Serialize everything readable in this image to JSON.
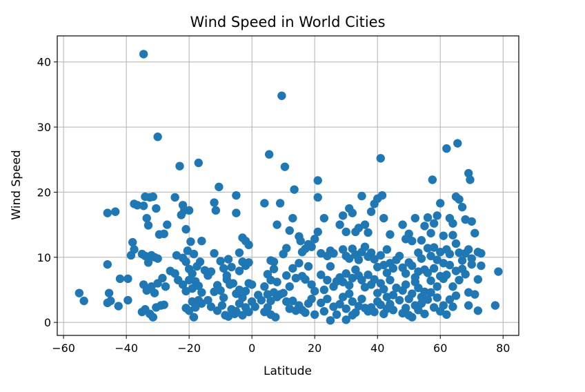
{
  "chart_data": {
    "type": "scatter",
    "title": "Wind Speed in World Cities",
    "xlabel": "Latitude",
    "ylabel": "Wind Speed",
    "xlim": [
      -62,
      85
    ],
    "ylim": [
      -2,
      44
    ],
    "xticks": [
      -60,
      -40,
      -20,
      0,
      20,
      40,
      60,
      80
    ],
    "yticks": [
      0,
      10,
      20,
      30,
      40
    ],
    "grid": true,
    "marker_color": "#1f77b4",
    "points": [
      [
        -55,
        4.5
      ],
      [
        -53.5,
        3.3
      ],
      [
        -46,
        16.8
      ],
      [
        -43.5,
        17
      ],
      [
        -46,
        8.9
      ],
      [
        -46,
        3
      ],
      [
        -45,
        3.3
      ],
      [
        -45.5,
        4.5
      ],
      [
        -42,
        6.7
      ],
      [
        -42.5,
        2.5
      ],
      [
        -39.5,
        6.7
      ],
      [
        -39.5,
        3.4
      ],
      [
        -38.5,
        10.3
      ],
      [
        -38,
        12.3
      ],
      [
        -37.5,
        11.2
      ],
      [
        -37.5,
        18.2
      ],
      [
        -36.5,
        18
      ],
      [
        -34.5,
        41.2
      ],
      [
        -34.5,
        17.9
      ],
      [
        -34,
        19.3
      ],
      [
        -33.5,
        16
      ],
      [
        -32.5,
        19.2
      ],
      [
        -33,
        14.9
      ],
      [
        -31.5,
        19.3
      ],
      [
        -30.5,
        17.5
      ],
      [
        -30,
        28.5
      ],
      [
        -29.5,
        13.5
      ],
      [
        -28,
        13.6
      ],
      [
        -27,
        15
      ],
      [
        -35,
        10.5
      ],
      [
        -34,
        10.2
      ],
      [
        -33,
        9.2
      ],
      [
        -32,
        10.3
      ],
      [
        -31,
        10
      ],
      [
        -30,
        9.8
      ],
      [
        -34.5,
        5.8
      ],
      [
        -33.5,
        4.9
      ],
      [
        -32,
        5.5
      ],
      [
        -31,
        4.5
      ],
      [
        -30,
        6
      ],
      [
        -28.5,
        6.8
      ],
      [
        -27.5,
        5.5
      ],
      [
        -26,
        7.9
      ],
      [
        -35,
        1.6
      ],
      [
        -34,
        2
      ],
      [
        -32.5,
        1.3
      ],
      [
        -31.5,
        0.8
      ],
      [
        -30.5,
        2.3
      ],
      [
        -29,
        2.6
      ],
      [
        -28,
        2.7
      ],
      [
        -24.5,
        7.5
      ],
      [
        -23.5,
        6.5
      ],
      [
        -24.5,
        19.2
      ],
      [
        -23,
        24
      ],
      [
        -22,
        18
      ],
      [
        -21.5,
        17.2
      ],
      [
        -20,
        17.2
      ],
      [
        -22.5,
        16.5
      ],
      [
        -21,
        14.3
      ],
      [
        -20.5,
        11
      ],
      [
        -19.5,
        12.4
      ],
      [
        -18.5,
        10.5
      ],
      [
        -17,
        24.5
      ],
      [
        -16,
        12.5
      ],
      [
        -24,
        10.3
      ],
      [
        -22,
        9.9
      ],
      [
        -21,
        9.3
      ],
      [
        -20,
        8.2
      ],
      [
        -19,
        7.5
      ],
      [
        -17.5,
        8.6
      ],
      [
        -16.5,
        9.3
      ],
      [
        -22,
        5.8
      ],
      [
        -21,
        4.8
      ],
      [
        -20,
        6.5
      ],
      [
        -19,
        5.2
      ],
      [
        -18,
        6.3
      ],
      [
        -17,
        5.6
      ],
      [
        -16,
        4.6
      ],
      [
        -21,
        2.2
      ],
      [
        -20,
        1.8
      ],
      [
        -19,
        3.2
      ],
      [
        -18,
        2.3
      ],
      [
        -17,
        3.4
      ],
      [
        -16,
        2.9
      ],
      [
        -18.5,
        0.8
      ],
      [
        -15,
        8
      ],
      [
        -14,
        7.2
      ],
      [
        -13,
        7.8
      ],
      [
        -12,
        18.4
      ],
      [
        -11.5,
        17.2
      ],
      [
        -10.5,
        20.8
      ],
      [
        -12,
        10.6
      ],
      [
        -10,
        9.4
      ],
      [
        -9,
        8.3
      ],
      [
        -8,
        7.2
      ],
      [
        -7.5,
        9.7
      ],
      [
        -6.5,
        8.5
      ],
      [
        -14,
        3.4
      ],
      [
        -12,
        4.7
      ],
      [
        -11,
        5.7
      ],
      [
        -10,
        4.9
      ],
      [
        -9,
        3.8
      ],
      [
        -8,
        6.6
      ],
      [
        -7,
        5.8
      ],
      [
        -6,
        6
      ],
      [
        -13,
        2.4
      ],
      [
        -11,
        1.8
      ],
      [
        -9.5,
        2.6
      ],
      [
        -8.5,
        1.1
      ],
      [
        -7.5,
        0.9
      ],
      [
        -6.5,
        2
      ],
      [
        -5.5,
        1.3
      ],
      [
        -5,
        19.5
      ],
      [
        -5,
        16.8
      ],
      [
        -4,
        10.7
      ],
      [
        -3,
        13
      ],
      [
        -2,
        12.5
      ],
      [
        -1,
        11.9
      ],
      [
        -4,
        7.9
      ],
      [
        -3,
        9.3
      ],
      [
        -2,
        8.7
      ],
      [
        -1,
        9.2
      ],
      [
        -5,
        4.4
      ],
      [
        -4,
        5
      ],
      [
        -3,
        3.8
      ],
      [
        -2,
        4.8
      ],
      [
        -1,
        6
      ],
      [
        0,
        5.8
      ],
      [
        -5,
        1.7
      ],
      [
        -4,
        2.9
      ],
      [
        -3,
        1.1
      ],
      [
        -2,
        2.3
      ],
      [
        -1,
        1.6
      ],
      [
        0,
        3.2
      ],
      [
        1,
        2.4
      ],
      [
        2,
        4.2
      ],
      [
        3,
        3.4
      ],
      [
        4,
        18.3
      ],
      [
        5.5,
        25.8
      ],
      [
        6,
        9.5
      ],
      [
        7,
        9.3
      ],
      [
        8,
        15
      ],
      [
        9,
        18.3
      ],
      [
        9.5,
        34.8
      ],
      [
        10.5,
        23.9
      ],
      [
        5,
        7.4
      ],
      [
        6,
        6.5
      ],
      [
        7,
        8.2
      ],
      [
        8,
        6.2
      ],
      [
        4,
        5.5
      ],
      [
        5,
        4.3
      ],
      [
        6,
        3.3
      ],
      [
        7,
        4.6
      ],
      [
        8,
        3.9
      ],
      [
        9,
        4.3
      ],
      [
        4,
        1.6
      ],
      [
        5,
        2.3
      ],
      [
        6,
        1.2
      ],
      [
        7.5,
        0.8
      ],
      [
        10,
        10.5
      ],
      [
        11,
        11.4
      ],
      [
        12,
        14.1
      ],
      [
        13,
        16
      ],
      [
        13.5,
        20.4
      ],
      [
        15,
        13.2
      ],
      [
        15.5,
        12.5
      ],
      [
        16,
        10.8
      ],
      [
        17,
        11.3
      ],
      [
        18,
        12
      ],
      [
        19,
        11.6
      ],
      [
        20,
        12.8
      ],
      [
        21,
        13.9
      ],
      [
        21,
        19.2
      ],
      [
        21,
        21.8
      ],
      [
        11,
        7.2
      ],
      [
        12,
        5.5
      ],
      [
        13,
        8.3
      ],
      [
        14,
        6.8
      ],
      [
        15,
        9.1
      ],
      [
        16,
        7.1
      ],
      [
        17,
        6.6
      ],
      [
        18,
        8.6
      ],
      [
        19,
        5.8
      ],
      [
        20,
        4.8
      ],
      [
        10,
        4.5
      ],
      [
        11,
        3.2
      ],
      [
        12,
        2.1
      ],
      [
        13,
        3.3
      ],
      [
        14,
        1.8
      ],
      [
        15,
        2.6
      ],
      [
        16,
        1.9
      ],
      [
        17,
        1.5
      ],
      [
        18,
        2.9
      ],
      [
        19,
        3.6
      ],
      [
        20,
        1.2
      ],
      [
        22,
        10.6
      ],
      [
        23,
        16
      ],
      [
        24,
        10.2
      ],
      [
        25,
        11
      ],
      [
        26,
        10.6
      ],
      [
        22,
        7.3
      ],
      [
        23,
        5
      ],
      [
        24,
        6.5
      ],
      [
        25,
        8.6
      ],
      [
        26,
        5.5
      ],
      [
        27,
        6.3
      ],
      [
        22,
        3
      ],
      [
        23,
        1.7
      ],
      [
        24,
        3.6
      ],
      [
        25,
        0.3
      ],
      [
        26,
        2.4
      ],
      [
        27,
        1.2
      ],
      [
        28,
        15
      ],
      [
        29,
        16.4
      ],
      [
        30,
        13.9
      ],
      [
        31,
        17.5
      ],
      [
        32,
        16.8
      ],
      [
        33,
        13.9
      ],
      [
        34,
        14.5
      ],
      [
        35,
        19.4
      ],
      [
        36,
        15
      ],
      [
        37,
        13.8
      ],
      [
        38,
        17
      ],
      [
        29,
        11.2
      ],
      [
        30,
        10.2
      ],
      [
        31,
        9.8
      ],
      [
        32,
        11.3
      ],
      [
        33,
        10.4
      ],
      [
        34,
        9.6
      ],
      [
        35,
        10.8
      ],
      [
        36,
        11.6
      ],
      [
        37,
        10.1
      ],
      [
        28,
        6.9
      ],
      [
        29,
        6.2
      ],
      [
        30,
        7.5
      ],
      [
        31,
        5.7
      ],
      [
        32,
        6.8
      ],
      [
        33,
        8.1
      ],
      [
        34,
        7.2
      ],
      [
        35,
        6.5
      ],
      [
        36,
        5.4
      ],
      [
        37,
        7.3
      ],
      [
        28,
        2.8
      ],
      [
        29,
        3.9
      ],
      [
        30,
        2.1
      ],
      [
        31,
        4.4
      ],
      [
        32,
        3.2
      ],
      [
        33,
        1.5
      ],
      [
        34,
        2.5
      ],
      [
        35,
        3.6
      ],
      [
        36,
        2.2
      ],
      [
        37,
        1.7
      ],
      [
        30,
        0.4
      ],
      [
        32,
        1.1
      ],
      [
        39,
        18.2
      ],
      [
        40,
        19
      ],
      [
        41,
        25.2
      ],
      [
        41.5,
        19.5
      ],
      [
        42,
        16
      ],
      [
        43,
        11.2
      ],
      [
        44,
        13.5
      ],
      [
        38,
        10.7
      ],
      [
        39,
        9.7
      ],
      [
        40,
        8.5
      ],
      [
        41,
        10.3
      ],
      [
        42,
        8.8
      ],
      [
        43,
        7.6
      ],
      [
        44,
        9.1
      ],
      [
        45,
        8.3
      ],
      [
        46,
        9.6
      ],
      [
        47,
        10.2
      ],
      [
        38,
        5.8
      ],
      [
        39,
        6.6
      ],
      [
        40,
        4.5
      ],
      [
        41,
        6
      ],
      [
        42,
        5.1
      ],
      [
        43,
        3.9
      ],
      [
        44,
        6.5
      ],
      [
        45,
        4.2
      ],
      [
        46,
        5.3
      ],
      [
        47,
        3.4
      ],
      [
        38,
        2.3
      ],
      [
        39,
        1.6
      ],
      [
        40,
        3.2
      ],
      [
        41,
        2.7
      ],
      [
        42,
        1.3
      ],
      [
        43,
        2.1
      ],
      [
        44,
        2.8
      ],
      [
        45,
        1.9
      ],
      [
        48,
        15
      ],
      [
        49,
        12.8
      ],
      [
        50,
        13.6
      ],
      [
        51,
        12.5
      ],
      [
        52,
        16
      ],
      [
        53,
        10.7
      ],
      [
        54,
        12.6
      ],
      [
        55,
        14.8
      ],
      [
        48,
        8.4
      ],
      [
        49,
        7.5
      ],
      [
        50,
        9.2
      ],
      [
        51,
        8.7
      ],
      [
        52,
        6.9
      ],
      [
        53,
        7.8
      ],
      [
        54,
        9.8
      ],
      [
        55,
        8.1
      ],
      [
        48,
        4.9
      ],
      [
        49,
        5.8
      ],
      [
        50,
        3.6
      ],
      [
        51,
        4.4
      ],
      [
        52,
        6.2
      ],
      [
        53,
        5.3
      ],
      [
        54,
        3.9
      ],
      [
        55,
        4.7
      ],
      [
        48,
        1.4
      ],
      [
        49,
        2.2
      ],
      [
        50,
        1.1
      ],
      [
        51,
        0.8
      ],
      [
        52,
        2.6
      ],
      [
        53,
        1.9
      ],
      [
        54,
        2.9
      ],
      [
        55,
        1.3
      ],
      [
        56,
        16.1
      ],
      [
        57,
        13.7
      ],
      [
        57.5,
        21.9
      ],
      [
        58,
        15.2
      ],
      [
        59,
        16.4
      ],
      [
        60,
        18.3
      ],
      [
        61,
        13.3
      ],
      [
        56,
        11.4
      ],
      [
        57,
        10.2
      ],
      [
        58,
        11.5
      ],
      [
        59,
        9.6
      ],
      [
        60,
        10.8
      ],
      [
        61,
        9.1
      ],
      [
        56,
        7.6
      ],
      [
        57,
        6.4
      ],
      [
        58,
        8.3
      ],
      [
        59,
        5.5
      ],
      [
        60,
        7.1
      ],
      [
        61,
        6.7
      ],
      [
        56,
        3.5
      ],
      [
        57,
        4.6
      ],
      [
        58,
        2.3
      ],
      [
        59,
        3.8
      ],
      [
        60,
        1.7
      ],
      [
        61,
        2.6
      ],
      [
        62,
        26.7
      ],
      [
        63,
        16
      ],
      [
        64,
        15.2
      ],
      [
        65,
        19.3
      ],
      [
        65.5,
        27.5
      ],
      [
        66,
        18.9
      ],
      [
        67,
        17.7
      ],
      [
        68,
        15.8
      ],
      [
        69,
        22.9
      ],
      [
        69.5,
        21.9
      ],
      [
        70,
        15.5
      ],
      [
        62,
        11.2
      ],
      [
        63,
        10.5
      ],
      [
        64,
        13.4
      ],
      [
        65,
        12.1
      ],
      [
        66,
        10.7
      ],
      [
        67,
        9.5
      ],
      [
        68,
        10.6
      ],
      [
        69,
        11.2
      ],
      [
        70,
        9.8
      ],
      [
        71,
        13.7
      ],
      [
        72,
        10.8
      ],
      [
        73,
        10.6
      ],
      [
        62,
        7.3
      ],
      [
        63,
        8.8
      ],
      [
        64,
        5.5
      ],
      [
        65,
        7.9
      ],
      [
        66,
        6.5
      ],
      [
        67,
        8.2
      ],
      [
        68,
        7.4
      ],
      [
        69,
        4.6
      ],
      [
        70,
        8.9
      ],
      [
        71,
        4.3
      ],
      [
        72,
        6.6
      ],
      [
        73,
        8.7
      ],
      [
        62,
        1.2
      ],
      [
        63,
        3.5
      ],
      [
        64,
        2.4
      ],
      [
        65,
        4.1
      ],
      [
        69,
        2.6
      ],
      [
        72,
        1.8
      ],
      [
        77.5,
        2.6
      ],
      [
        78.5,
        7.8
      ]
    ]
  }
}
